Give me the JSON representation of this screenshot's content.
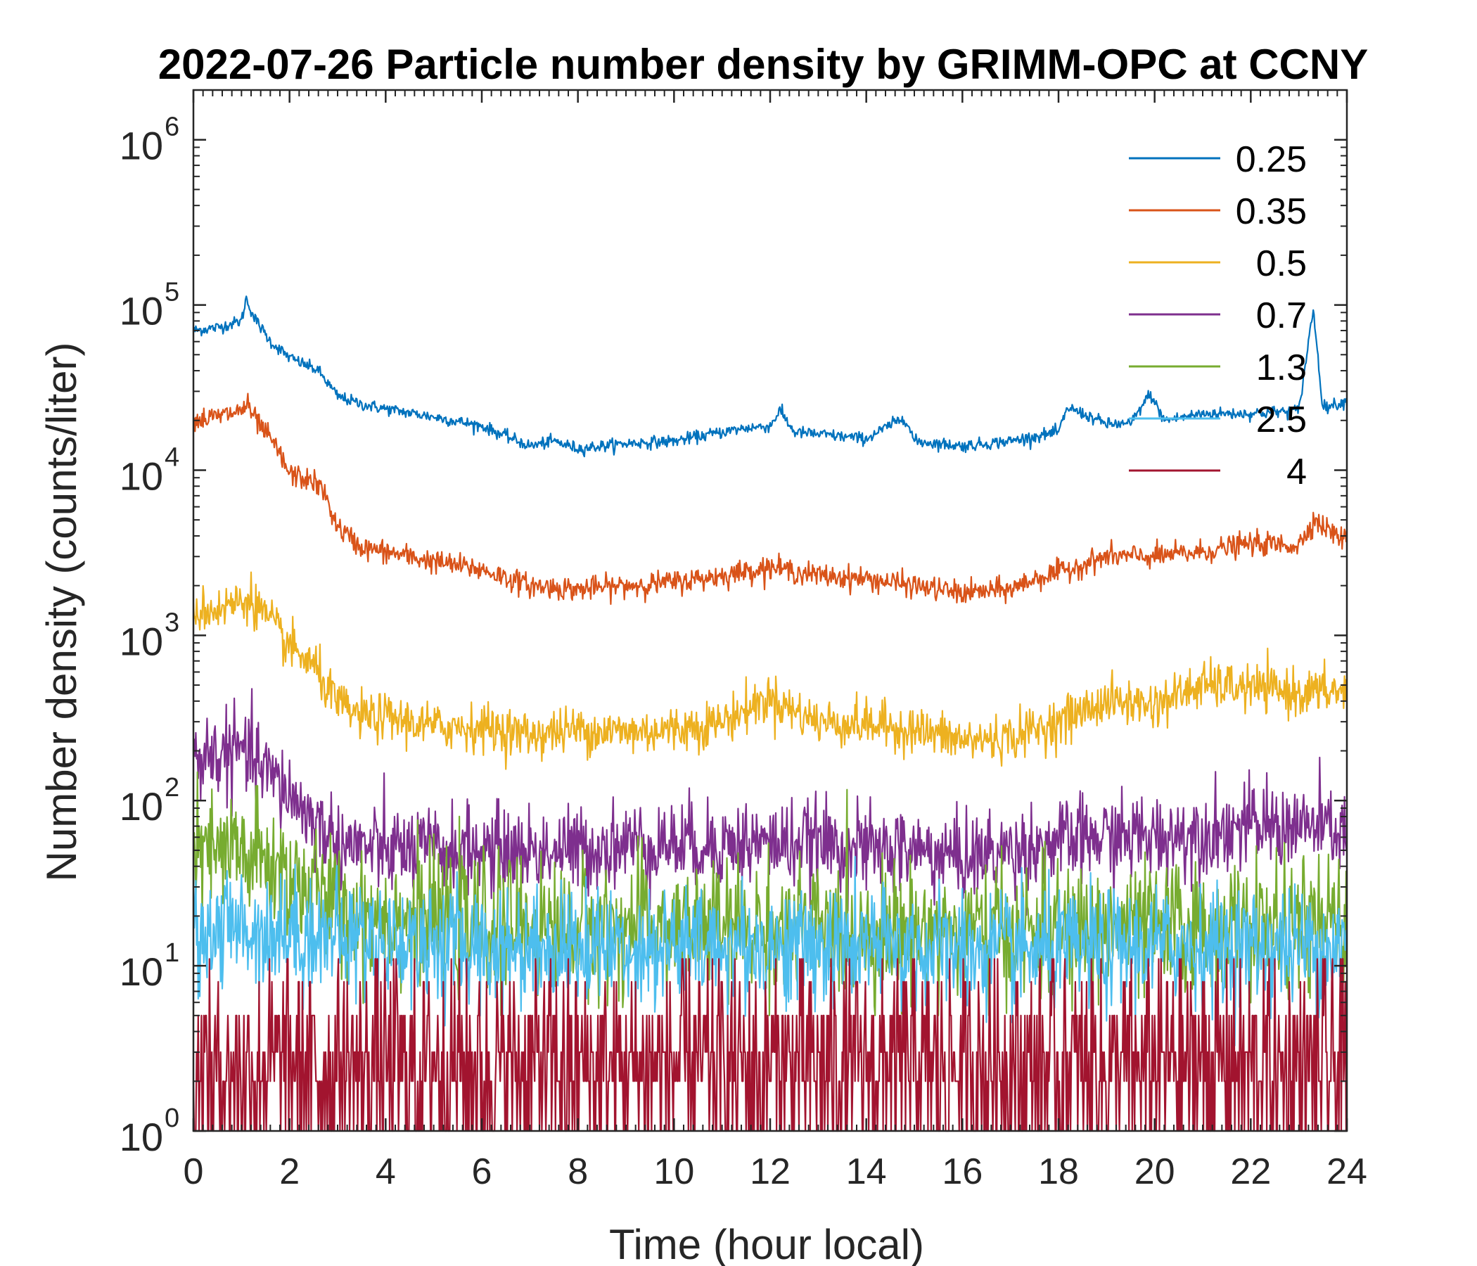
{
  "chart_data": {
    "type": "line",
    "title": "2022-07-26 Particle number density by GRIMM-OPC at CCNY",
    "xlabel": "Time (hour local)",
    "ylabel": "Number density (counts/liter)",
    "xlim": [
      0,
      24
    ],
    "ylim": [
      1,
      2000000
    ],
    "yscale": "log",
    "xticks": [
      0,
      2,
      4,
      6,
      8,
      10,
      12,
      14,
      16,
      18,
      20,
      22,
      24
    ],
    "yticks": [
      {
        "base": "10",
        "exp": "0"
      },
      {
        "base": "10",
        "exp": "1"
      },
      {
        "base": "10",
        "exp": "2"
      },
      {
        "base": "10",
        "exp": "3"
      },
      {
        "base": "10",
        "exp": "4"
      },
      {
        "base": "10",
        "exp": "5"
      },
      {
        "base": "10",
        "exp": "6"
      }
    ],
    "grid": false,
    "legend_position": "top-right",
    "series": [
      {
        "name": "0.25",
        "color": "#0072BD",
        "x": [
          0,
          0.5,
          1.0,
          1.1,
          1.25,
          1.6,
          2.0,
          2.6,
          3.0,
          3.5,
          4.0,
          5.0,
          6.0,
          7.0,
          7.5,
          8.0,
          9.0,
          10.0,
          11.0,
          11.5,
          12.0,
          12.2,
          12.5,
          13.0,
          14.0,
          14.8,
          15.0,
          16.0,
          17.0,
          18.0,
          18.2,
          19.0,
          19.5,
          19.9,
          20.2,
          21.0,
          22.0,
          23.0,
          23.3,
          23.5,
          24.0
        ],
        "y": [
          70000,
          73000,
          80000,
          110000,
          85000,
          60000,
          48000,
          40000,
          28000,
          25000,
          23500,
          21000,
          18500,
          14000,
          15000,
          13500,
          14500,
          15000,
          17000,
          18000,
          18500,
          23000,
          17000,
          16500,
          15500,
          21000,
          15000,
          14000,
          15000,
          17000,
          24000,
          19000,
          19000,
          29000,
          20000,
          22000,
          22000,
          23000,
          95000,
          24000,
          26000
        ]
      },
      {
        "name": "0.35",
        "color": "#D95319",
        "x": [
          0,
          0.5,
          1.0,
          1.1,
          1.3,
          1.7,
          2.0,
          2.5,
          2.7,
          3.0,
          3.5,
          4.0,
          5.0,
          6.0,
          7.0,
          8.0,
          9.0,
          10.0,
          11.0,
          12.0,
          13.0,
          14.0,
          15.0,
          16.0,
          17.0,
          17.5,
          18.0,
          19.0,
          20.0,
          21.0,
          22.0,
          23.0,
          23.3,
          24.0
        ],
        "y": [
          20000,
          21000,
          23000,
          25000,
          20000,
          14000,
          9500,
          8500,
          7500,
          4500,
          3400,
          3200,
          2800,
          2500,
          2000,
          1900,
          2000,
          2100,
          2300,
          2600,
          2300,
          2200,
          2000,
          1800,
          1900,
          2200,
          2400,
          3000,
          3000,
          3200,
          3600,
          3500,
          5000,
          3700
        ]
      },
      {
        "name": "0.5",
        "color": "#EDB120",
        "x": [
          0,
          0.5,
          1.0,
          1.2,
          1.5,
          2.0,
          2.5,
          3.0,
          3.5,
          4.0,
          5.0,
          6.0,
          7.0,
          8.0,
          9.0,
          10.0,
          11.0,
          12.0,
          12.5,
          13.0,
          14.0,
          15.0,
          16.0,
          17.0,
          18.0,
          19.0,
          20.0,
          21.0,
          22.0,
          23.0,
          24.0
        ],
        "y": [
          1400,
          1450,
          1600,
          1700,
          1300,
          850,
          650,
          380,
          320,
          320,
          280,
          280,
          250,
          270,
          260,
          270,
          300,
          420,
          350,
          300,
          290,
          270,
          230,
          240,
          300,
          400,
          380,
          500,
          480,
          450,
          460
        ]
      },
      {
        "name": "0.7",
        "color": "#7E2F8E",
        "x": [
          0,
          0.5,
          1.0,
          1.5,
          2.0,
          2.5,
          3.0,
          4.0,
          5.0,
          6.0,
          7.0,
          8.0,
          9.0,
          10.0,
          11.0,
          12.0,
          13.0,
          14.0,
          15.0,
          16.0,
          17.0,
          18.0,
          19.0,
          20.0,
          21.0,
          22.0,
          23.0,
          24.0
        ],
        "y": [
          180,
          190,
          200,
          150,
          110,
          75,
          55,
          50,
          50,
          50,
          50,
          50,
          55,
          55,
          55,
          55,
          55,
          50,
          50,
          45,
          50,
          55,
          60,
          60,
          65,
          70,
          70,
          65
        ]
      },
      {
        "name": "1.3",
        "color": "#77AC30",
        "x": [
          0,
          1.0,
          2.0,
          2.5,
          3.0,
          4.0,
          6.0,
          8.0,
          10.0,
          12.0,
          14.0,
          16.0,
          18.0,
          20.0,
          22.0,
          24.0
        ],
        "y": [
          45,
          48,
          35,
          28,
          22,
          20,
          18,
          17,
          17,
          17,
          16,
          16,
          16,
          17,
          17,
          17
        ]
      },
      {
        "name": "2.5",
        "color": "#4DBEEE",
        "x": [
          0,
          1.0,
          2.0,
          3.0,
          4.0,
          6.0,
          8.0,
          10.0,
          12.0,
          14.0,
          16.0,
          18.0,
          20.0,
          22.0,
          24.0
        ],
        "y": [
          16,
          17,
          16,
          15,
          14,
          13,
          13,
          13,
          13,
          13,
          12,
          12,
          13,
          13,
          13
        ]
      },
      {
        "name": "4",
        "color": "#A2142F",
        "x": [
          0,
          4.0,
          8.0,
          12.0,
          16.0,
          20.0,
          24.0
        ],
        "y": [
          2.5,
          2.5,
          2.5,
          2.5,
          2.5,
          2.5,
          2.5
        ]
      }
    ]
  }
}
